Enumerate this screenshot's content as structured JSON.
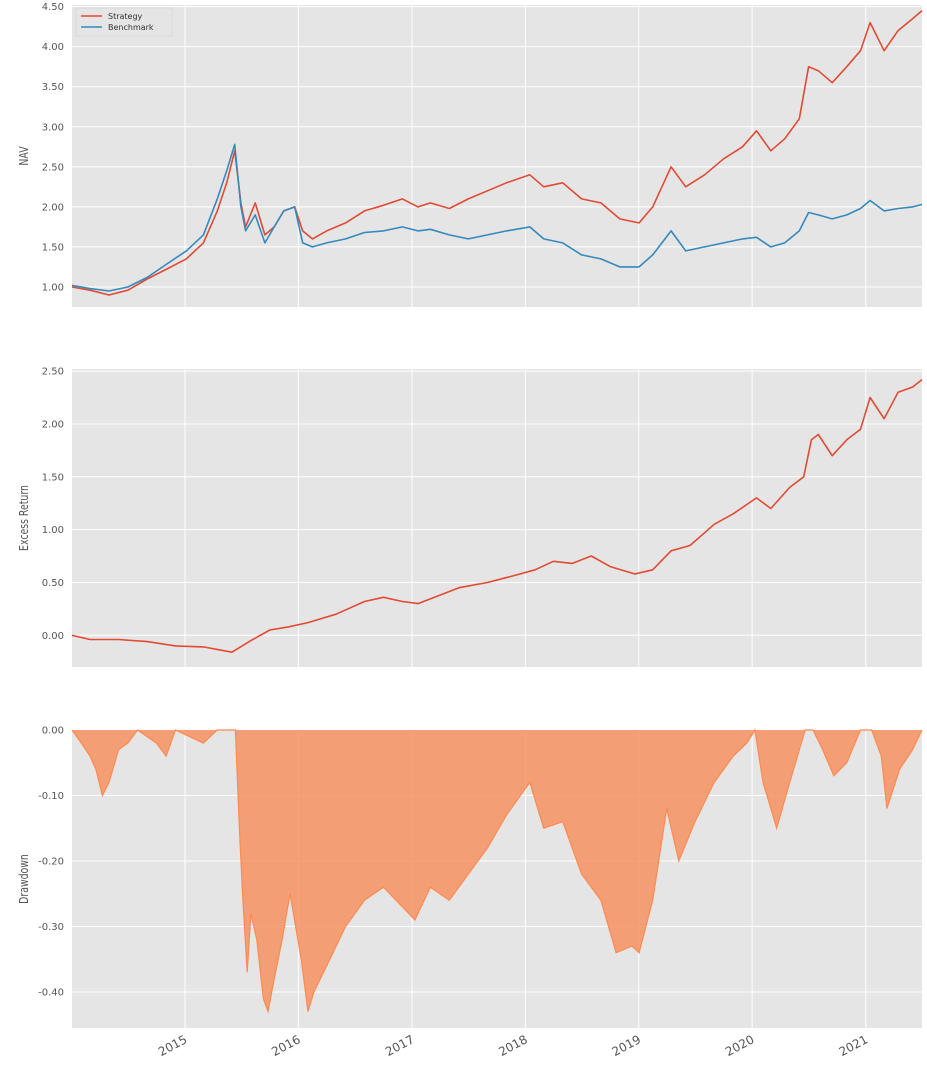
{
  "chart_data": [
    {
      "type": "line",
      "ylabel": "NAV",
      "xlim": [
        "2014-01-02",
        "2021-07-01"
      ],
      "ylim": [
        0.75,
        4.52
      ],
      "yticks": [
        "1.00",
        "1.50",
        "2.00",
        "2.50",
        "3.00",
        "3.50",
        "4.00",
        "4.50"
      ],
      "grid": true,
      "legend_position": "top-left",
      "series": [
        {
          "name": "Strategy",
          "color": "#e24a33",
          "points": [
            [
              "2014-01-02",
              1.0
            ],
            [
              "2014-03-01",
              0.96
            ],
            [
              "2014-05-01",
              0.9
            ],
            [
              "2014-07-01",
              0.96
            ],
            [
              "2014-09-01",
              1.1
            ],
            [
              "2014-11-01",
              1.22
            ],
            [
              "2015-01-05",
              1.35
            ],
            [
              "2015-03-01",
              1.55
            ],
            [
              "2015-04-15",
              1.95
            ],
            [
              "2015-05-15",
              2.3
            ],
            [
              "2015-06-10",
              2.7
            ],
            [
              "2015-06-30",
              2.05
            ],
            [
              "2015-07-15",
              1.75
            ],
            [
              "2015-08-15",
              2.05
            ],
            [
              "2015-09-15",
              1.65
            ],
            [
              "2015-10-15",
              1.75
            ],
            [
              "2015-11-15",
              1.95
            ],
            [
              "2015-12-20",
              2.0
            ],
            [
              "2016-01-15",
              1.7
            ],
            [
              "2016-02-15",
              1.6
            ],
            [
              "2016-04-01",
              1.7
            ],
            [
              "2016-06-01",
              1.8
            ],
            [
              "2016-08-01",
              1.95
            ],
            [
              "2016-10-01",
              2.02
            ],
            [
              "2016-12-01",
              2.1
            ],
            [
              "2017-01-20",
              2.0
            ],
            [
              "2017-03-01",
              2.05
            ],
            [
              "2017-05-01",
              1.98
            ],
            [
              "2017-07-01",
              2.1
            ],
            [
              "2017-09-01",
              2.2
            ],
            [
              "2017-11-01",
              2.3
            ],
            [
              "2018-01-15",
              2.4
            ],
            [
              "2018-03-01",
              2.25
            ],
            [
              "2018-05-01",
              2.3
            ],
            [
              "2018-07-01",
              2.1
            ],
            [
              "2018-09-01",
              2.05
            ],
            [
              "2018-11-01",
              1.85
            ],
            [
              "2019-01-02",
              1.8
            ],
            [
              "2019-02-15",
              2.0
            ],
            [
              "2019-04-15",
              2.5
            ],
            [
              "2019-06-01",
              2.25
            ],
            [
              "2019-08-01",
              2.4
            ],
            [
              "2019-10-01",
              2.6
            ],
            [
              "2019-12-01",
              2.75
            ],
            [
              "2020-01-15",
              2.95
            ],
            [
              "2020-03-01",
              2.7
            ],
            [
              "2020-04-15",
              2.85
            ],
            [
              "2020-06-01",
              3.1
            ],
            [
              "2020-07-01",
              3.75
            ],
            [
              "2020-08-01",
              3.7
            ],
            [
              "2020-09-15",
              3.55
            ],
            [
              "2020-11-01",
              3.75
            ],
            [
              "2020-12-15",
              3.95
            ],
            [
              "2021-01-15",
              4.3
            ],
            [
              "2021-03-01",
              3.95
            ],
            [
              "2021-04-15",
              4.2
            ],
            [
              "2021-06-01",
              4.35
            ],
            [
              "2021-07-01",
              4.45
            ]
          ]
        },
        {
          "name": "Benchmark",
          "color": "#348abd",
          "points": [
            [
              "2014-01-02",
              1.02
            ],
            [
              "2014-03-01",
              0.98
            ],
            [
              "2014-05-01",
              0.95
            ],
            [
              "2014-07-01",
              1.0
            ],
            [
              "2014-09-01",
              1.12
            ],
            [
              "2014-11-01",
              1.28
            ],
            [
              "2015-01-05",
              1.45
            ],
            [
              "2015-03-01",
              1.65
            ],
            [
              "2015-04-15",
              2.1
            ],
            [
              "2015-05-15",
              2.45
            ],
            [
              "2015-06-10",
              2.78
            ],
            [
              "2015-06-30",
              2.0
            ],
            [
              "2015-07-15",
              1.7
            ],
            [
              "2015-08-15",
              1.9
            ],
            [
              "2015-09-15",
              1.55
            ],
            [
              "2015-10-15",
              1.75
            ],
            [
              "2015-11-15",
              1.95
            ],
            [
              "2015-12-20",
              2.0
            ],
            [
              "2016-01-15",
              1.55
            ],
            [
              "2016-02-15",
              1.5
            ],
            [
              "2016-04-01",
              1.55
            ],
            [
              "2016-06-01",
              1.6
            ],
            [
              "2016-08-01",
              1.68
            ],
            [
              "2016-10-01",
              1.7
            ],
            [
              "2016-12-01",
              1.75
            ],
            [
              "2017-01-20",
              1.7
            ],
            [
              "2017-03-01",
              1.72
            ],
            [
              "2017-05-01",
              1.65
            ],
            [
              "2017-07-01",
              1.6
            ],
            [
              "2017-09-01",
              1.65
            ],
            [
              "2017-11-01",
              1.7
            ],
            [
              "2018-01-15",
              1.75
            ],
            [
              "2018-03-01",
              1.6
            ],
            [
              "2018-05-01",
              1.55
            ],
            [
              "2018-07-01",
              1.4
            ],
            [
              "2018-09-01",
              1.35
            ],
            [
              "2018-11-01",
              1.25
            ],
            [
              "2019-01-02",
              1.25
            ],
            [
              "2019-02-15",
              1.4
            ],
            [
              "2019-04-15",
              1.7
            ],
            [
              "2019-06-01",
              1.45
            ],
            [
              "2019-08-01",
              1.5
            ],
            [
              "2019-10-01",
              1.55
            ],
            [
              "2019-12-01",
              1.6
            ],
            [
              "2020-01-15",
              1.62
            ],
            [
              "2020-03-01",
              1.5
            ],
            [
              "2020-04-15",
              1.55
            ],
            [
              "2020-06-01",
              1.7
            ],
            [
              "2020-07-01",
              1.93
            ],
            [
              "2020-08-01",
              1.9
            ],
            [
              "2020-09-15",
              1.85
            ],
            [
              "2020-11-01",
              1.9
            ],
            [
              "2020-12-15",
              1.98
            ],
            [
              "2021-01-15",
              2.08
            ],
            [
              "2021-03-01",
              1.95
            ],
            [
              "2021-04-15",
              1.98
            ],
            [
              "2021-06-01",
              2.0
            ],
            [
              "2021-07-01",
              2.03
            ]
          ]
        }
      ]
    },
    {
      "type": "line",
      "ylabel": "Excess Return",
      "xlim": [
        "2014-01-02",
        "2021-07-01"
      ],
      "ylim": [
        -0.3,
        2.52
      ],
      "yticks": [
        "0.00",
        "0.50",
        "1.00",
        "1.50",
        "2.00",
        "2.50"
      ],
      "grid": true,
      "series": [
        {
          "color": "#e24a33",
          "points": [
            [
              "2014-01-02",
              0.0
            ],
            [
              "2014-03-01",
              -0.04
            ],
            [
              "2014-06-01",
              -0.04
            ],
            [
              "2014-09-01",
              -0.06
            ],
            [
              "2014-12-01",
              -0.1
            ],
            [
              "2015-03-01",
              -0.11
            ],
            [
              "2015-06-01",
              -0.16
            ],
            [
              "2015-08-01",
              -0.05
            ],
            [
              "2015-10-01",
              0.05
            ],
            [
              "2015-12-01",
              0.08
            ],
            [
              "2016-02-01",
              0.12
            ],
            [
              "2016-05-01",
              0.2
            ],
            [
              "2016-08-01",
              0.32
            ],
            [
              "2016-10-01",
              0.36
            ],
            [
              "2016-12-01",
              0.32
            ],
            [
              "2017-01-20",
              0.3
            ],
            [
              "2017-04-01",
              0.38
            ],
            [
              "2017-06-01",
              0.45
            ],
            [
              "2017-09-01",
              0.5
            ],
            [
              "2017-12-01",
              0.57
            ],
            [
              "2018-02-01",
              0.62
            ],
            [
              "2018-04-01",
              0.7
            ],
            [
              "2018-06-01",
              0.68
            ],
            [
              "2018-08-01",
              0.75
            ],
            [
              "2018-10-01",
              0.65
            ],
            [
              "2018-12-20",
              0.58
            ],
            [
              "2019-02-15",
              0.62
            ],
            [
              "2019-04-15",
              0.8
            ],
            [
              "2019-06-15",
              0.85
            ],
            [
              "2019-09-01",
              1.05
            ],
            [
              "2019-11-01",
              1.15
            ],
            [
              "2020-01-15",
              1.3
            ],
            [
              "2020-03-01",
              1.2
            ],
            [
              "2020-05-01",
              1.4
            ],
            [
              "2020-06-15",
              1.5
            ],
            [
              "2020-07-10",
              1.85
            ],
            [
              "2020-08-01",
              1.9
            ],
            [
              "2020-09-15",
              1.7
            ],
            [
              "2020-11-01",
              1.85
            ],
            [
              "2020-12-15",
              1.95
            ],
            [
              "2021-01-15",
              2.25
            ],
            [
              "2021-03-01",
              2.05
            ],
            [
              "2021-04-15",
              2.3
            ],
            [
              "2021-06-01",
              2.35
            ],
            [
              "2021-07-01",
              2.42
            ]
          ]
        }
      ]
    },
    {
      "type": "area",
      "ylabel": "Drawdown",
      "xlim": [
        "2014-01-02",
        "2021-07-01"
      ],
      "ylim": [
        -0.455,
        0.0
      ],
      "yticks": [
        "0.00",
        "-0.10",
        "-0.20",
        "-0.30",
        "-0.40"
      ],
      "xticks": [
        "2015",
        "2016",
        "2017",
        "2018",
        "2019",
        "2020",
        "2021"
      ],
      "grid": true,
      "series": [
        {
          "color": "#f79261",
          "points": [
            [
              "2014-01-02",
              0.0
            ],
            [
              "2014-02-01",
              -0.02
            ],
            [
              "2014-03-01",
              -0.04
            ],
            [
              "2014-03-20",
              -0.06
            ],
            [
              "2014-04-10",
              -0.1
            ],
            [
              "2014-05-01",
              -0.08
            ],
            [
              "2014-06-01",
              -0.03
            ],
            [
              "2014-07-01",
              -0.02
            ],
            [
              "2014-08-01",
              0.0
            ],
            [
              "2014-10-01",
              -0.02
            ],
            [
              "2014-11-01",
              -0.04
            ],
            [
              "2014-12-01",
              0.0
            ],
            [
              "2015-03-01",
              -0.02
            ],
            [
              "2015-04-15",
              0.0
            ],
            [
              "2015-06-12",
              0.0
            ],
            [
              "2015-06-25",
              -0.15
            ],
            [
              "2015-07-05",
              -0.25
            ],
            [
              "2015-07-20",
              -0.37
            ],
            [
              "2015-08-01",
              -0.28
            ],
            [
              "2015-08-20",
              -0.32
            ],
            [
              "2015-09-10",
              -0.41
            ],
            [
              "2015-09-25",
              -0.43
            ],
            [
              "2015-10-15",
              -0.38
            ],
            [
              "2015-11-10",
              -0.32
            ],
            [
              "2015-12-05",
              -0.25
            ],
            [
              "2016-01-10",
              -0.35
            ],
            [
              "2016-02-01",
              -0.43
            ],
            [
              "2016-02-20",
              -0.4
            ],
            [
              "2016-04-01",
              -0.36
            ],
            [
              "2016-06-01",
              -0.3
            ],
            [
              "2016-08-01",
              -0.26
            ],
            [
              "2016-10-01",
              -0.24
            ],
            [
              "2016-12-01",
              -0.27
            ],
            [
              "2017-01-10",
              -0.29
            ],
            [
              "2017-03-01",
              -0.24
            ],
            [
              "2017-05-01",
              -0.26
            ],
            [
              "2017-07-01",
              -0.22
            ],
            [
              "2017-09-01",
              -0.18
            ],
            [
              "2017-11-01",
              -0.13
            ],
            [
              "2018-01-15",
              -0.08
            ],
            [
              "2018-03-01",
              -0.15
            ],
            [
              "2018-05-01",
              -0.14
            ],
            [
              "2018-07-01",
              -0.22
            ],
            [
              "2018-09-01",
              -0.26
            ],
            [
              "2018-10-20",
              -0.34
            ],
            [
              "2018-12-10",
              -0.33
            ],
            [
              "2019-01-02",
              -0.34
            ],
            [
              "2019-02-15",
              -0.26
            ],
            [
              "2019-04-01",
              -0.12
            ],
            [
              "2019-05-10",
              -0.2
            ],
            [
              "2019-07-01",
              -0.14
            ],
            [
              "2019-09-01",
              -0.08
            ],
            [
              "2019-11-01",
              -0.04
            ],
            [
              "2019-12-15",
              -0.02
            ],
            [
              "2020-01-10",
              0.0
            ],
            [
              "2020-02-05",
              -0.08
            ],
            [
              "2020-03-20",
              -0.15
            ],
            [
              "2020-05-01",
              -0.08
            ],
            [
              "2020-06-20",
              0.0
            ],
            [
              "2020-07-15",
              0.0
            ],
            [
              "2020-08-15",
              -0.03
            ],
            [
              "2020-09-20",
              -0.07
            ],
            [
              "2020-11-01",
              -0.05
            ],
            [
              "2020-12-15",
              0.0
            ],
            [
              "2021-01-20",
              0.0
            ],
            [
              "2021-02-20",
              -0.04
            ],
            [
              "2021-03-10",
              -0.12
            ],
            [
              "2021-04-20",
              -0.06
            ],
            [
              "2021-06-01",
              -0.03
            ],
            [
              "2021-07-01",
              0.0
            ]
          ]
        }
      ]
    }
  ]
}
